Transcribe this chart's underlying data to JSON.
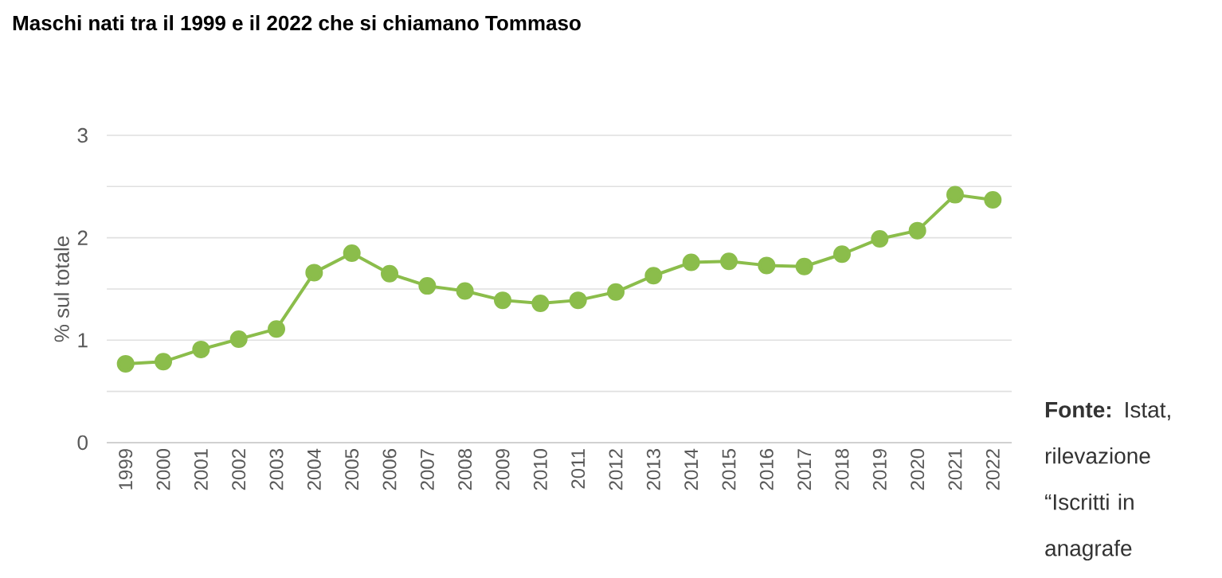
{
  "chart_data": {
    "type": "line",
    "title": "Maschi nati tra il 1999 e il 2022 che si chiamano Tommaso",
    "ylabel": "% sul totale",
    "categories": [
      "1999",
      "2000",
      "2001",
      "2002",
      "2003",
      "2004",
      "2005",
      "2006",
      "2007",
      "2008",
      "2009",
      "2010",
      "2011",
      "2012",
      "2013",
      "2014",
      "2015",
      "2016",
      "2017",
      "2018",
      "2019",
      "2020",
      "2021",
      "2022"
    ],
    "values": [
      0.77,
      0.79,
      0.91,
      1.01,
      1.11,
      1.66,
      1.85,
      1.65,
      1.53,
      1.48,
      1.39,
      1.36,
      1.39,
      1.47,
      1.63,
      1.76,
      1.77,
      1.73,
      1.72,
      1.84,
      1.99,
      2.07,
      2.42,
      2.37
    ],
    "color": "#8bbd4b",
    "ylim": [
      0,
      3
    ],
    "yticks": [
      0,
      {
        "value": 0.5,
        "label": null
      },
      1,
      {
        "value": 1.5,
        "label": null
      },
      2,
      {
        "value": 2.5,
        "label": null
      },
      3
    ],
    "grid": "y",
    "marker": "circle",
    "line_style": "solid",
    "annotations": [
      "**Fonte:** Istat, rilevazione “Iscritti in anagrafe"
    ]
  }
}
